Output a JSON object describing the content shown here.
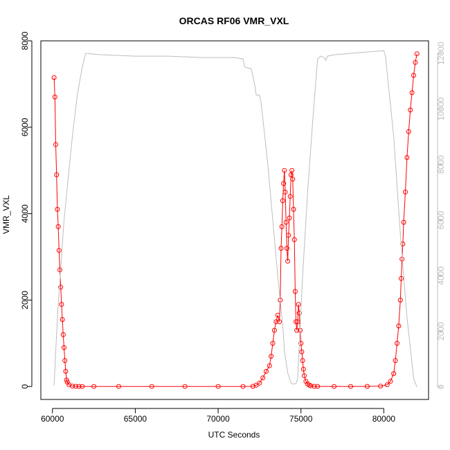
{
  "chart_data": {
    "type": "line",
    "title": "ORCAS RF06 VMR_VXL",
    "xlabel": "UTC Seconds",
    "ylabel": "VMR_VXL",
    "xlim": [
      59300,
      82700
    ],
    "ylim": [
      -300,
      8000
    ],
    "y2lim": [
      -450,
      12450
    ],
    "x_ticks": [
      60000,
      65000,
      70000,
      75000,
      80000
    ],
    "y_ticks": [
      0,
      2000,
      4000,
      6000,
      8000
    ],
    "y2_ticks": [
      0,
      2000,
      4000,
      6000,
      8000,
      10000,
      12000
    ],
    "grid": false,
    "colors": {
      "primary": "#ff0000",
      "secondary": "#bdbdbd"
    },
    "series": [
      {
        "axis": "left",
        "style": "points-with-line",
        "marker": "open-circle",
        "color": "#ff0000",
        "x": [
          60100,
          60150,
          60200,
          60250,
          60300,
          60350,
          60400,
          60450,
          60500,
          60550,
          60600,
          60650,
          60700,
          60750,
          60800,
          60850,
          60900,
          61000,
          61200,
          61400,
          61600,
          61800,
          62500,
          64000,
          66000,
          68000,
          70000,
          71500,
          72100,
          72300,
          72500,
          72700,
          72900,
          73100,
          73200,
          73300,
          73400,
          73500,
          73600,
          73700,
          73750,
          73800,
          73850,
          73900,
          73950,
          74000,
          74050,
          74100,
          74150,
          74200,
          74250,
          74300,
          74350,
          74400,
          74450,
          74500,
          74550,
          74600,
          74650,
          74700,
          74750,
          74800,
          74850,
          74900,
          74950,
          75000,
          75050,
          75100,
          75150,
          75200,
          75300,
          75400,
          75500,
          75600,
          75800,
          76000,
          77000,
          78000,
          79000,
          79800,
          80200,
          80400,
          80600,
          80700,
          80800,
          80900,
          81000,
          81050,
          81100,
          81150,
          81200,
          81300,
          81400,
          81500,
          81600,
          81700,
          81800,
          81900,
          82000
        ],
        "y": [
          7150,
          6700,
          5600,
          4900,
          4100,
          3700,
          3150,
          2700,
          2300,
          1900,
          1550,
          1200,
          900,
          600,
          350,
          150,
          100,
          40,
          10,
          5,
          3,
          2,
          2,
          2,
          2,
          2,
          2,
          2,
          5,
          30,
          80,
          200,
          350,
          480,
          700,
          1000,
          1300,
          1500,
          1650,
          1500,
          2000,
          3200,
          3700,
          4300,
          4700,
          5000,
          4500,
          3800,
          3200,
          2900,
          3500,
          3900,
          4400,
          4900,
          5000,
          4800,
          4100,
          3400,
          2200,
          1500,
          1300,
          1500,
          1900,
          1700,
          1300,
          1000,
          800,
          600,
          400,
          250,
          120,
          60,
          30,
          15,
          5,
          3,
          2,
          2,
          3,
          10,
          40,
          120,
          300,
          600,
          1000,
          1400,
          2000,
          2500,
          2950,
          3300,
          3800,
          4500,
          5300,
          5900,
          6400,
          6800,
          7200,
          7500,
          7700
        ]
      },
      {
        "axis": "right",
        "style": "line",
        "color": "#bdbdbd",
        "x": [
          60100,
          60300,
          60700,
          61200,
          61500,
          61800,
          62000,
          63000,
          65000,
          67000,
          69000,
          70000,
          71000,
          71500,
          71600,
          72000,
          72200,
          72300,
          72500,
          72600,
          73000,
          73300,
          73600,
          73900,
          74000,
          74200,
          74400,
          74500,
          74700,
          74800,
          74900,
          75100,
          75400,
          75700,
          76000,
          76200,
          76400,
          76500,
          76600,
          77000,
          78000,
          79000,
          80000,
          80100,
          80600,
          81000,
          81400,
          81800,
          82000
        ],
        "y": [
          50,
          2500,
          6000,
          9000,
          10500,
          11500,
          12000,
          11950,
          11900,
          11900,
          11850,
          11850,
          11850,
          11800,
          11500,
          11450,
          10900,
          10500,
          10500,
          10200,
          8000,
          6000,
          4000,
          2200,
          1300,
          500,
          150,
          100,
          120,
          300,
          1500,
          4000,
          7000,
          9500,
          11800,
          11900,
          11850,
          11750,
          11900,
          11950,
          12000,
          12050,
          12100,
          11900,
          9000,
          5500,
          2500,
          300,
          0
        ]
      }
    ]
  }
}
